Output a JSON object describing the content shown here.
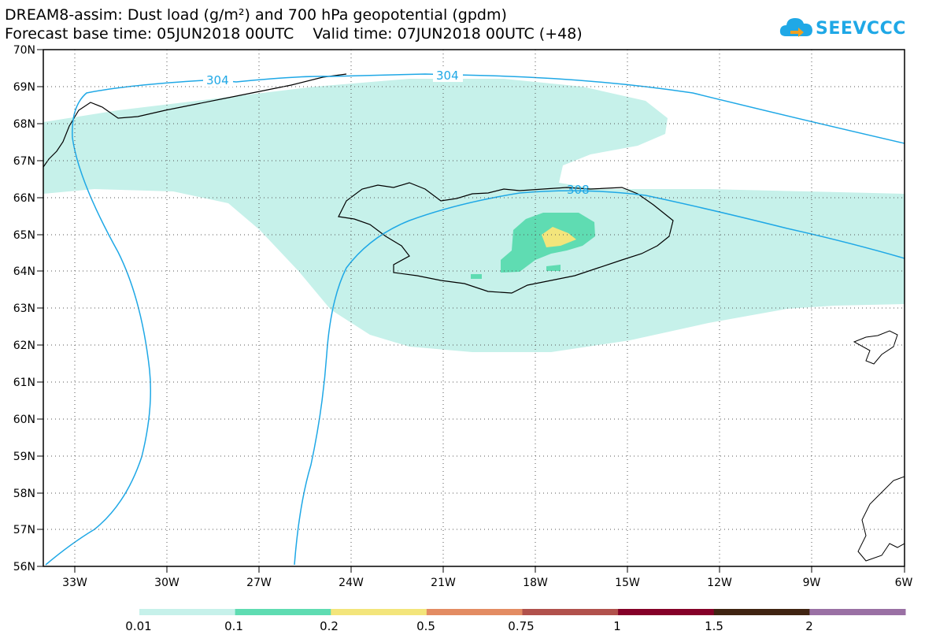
{
  "title": {
    "line1": "DREAM8-assim: Dust load (g/m²) and 700 hPa geopotential (gpdm)",
    "line2": "Forecast base time: 05JUN2018 00UTC    Valid time: 07JUN2018 00UTC (+48)"
  },
  "logo": {
    "text": "SEEVCCC",
    "icon": "cloud-icon",
    "color": "#1fa8e6"
  },
  "map": {
    "lat_labels": [
      "70N",
      "69N",
      "68N",
      "67N",
      "66N",
      "65N",
      "64N",
      "63N",
      "62N",
      "61N",
      "60N",
      "59N",
      "58N",
      "57N",
      "56N"
    ],
    "lon_labels": [
      "33W",
      "30W",
      "27W",
      "24W",
      "21W",
      "18W",
      "15W",
      "12W",
      "9W",
      "6W"
    ],
    "contour_labels": [
      "304",
      "304",
      "308"
    ],
    "contour_color": "#1fa8e6"
  },
  "colorbar": {
    "labels": [
      "0.01",
      "0.1",
      "0.2",
      "0.5",
      "0.75",
      "1",
      "1.5",
      "2"
    ],
    "colors": [
      "#c6f1ea",
      "#5fdcb2",
      "#f3e57b",
      "#e38c63",
      "#b1514c",
      "#850028",
      "#402412",
      "#9a70a4"
    ]
  }
}
